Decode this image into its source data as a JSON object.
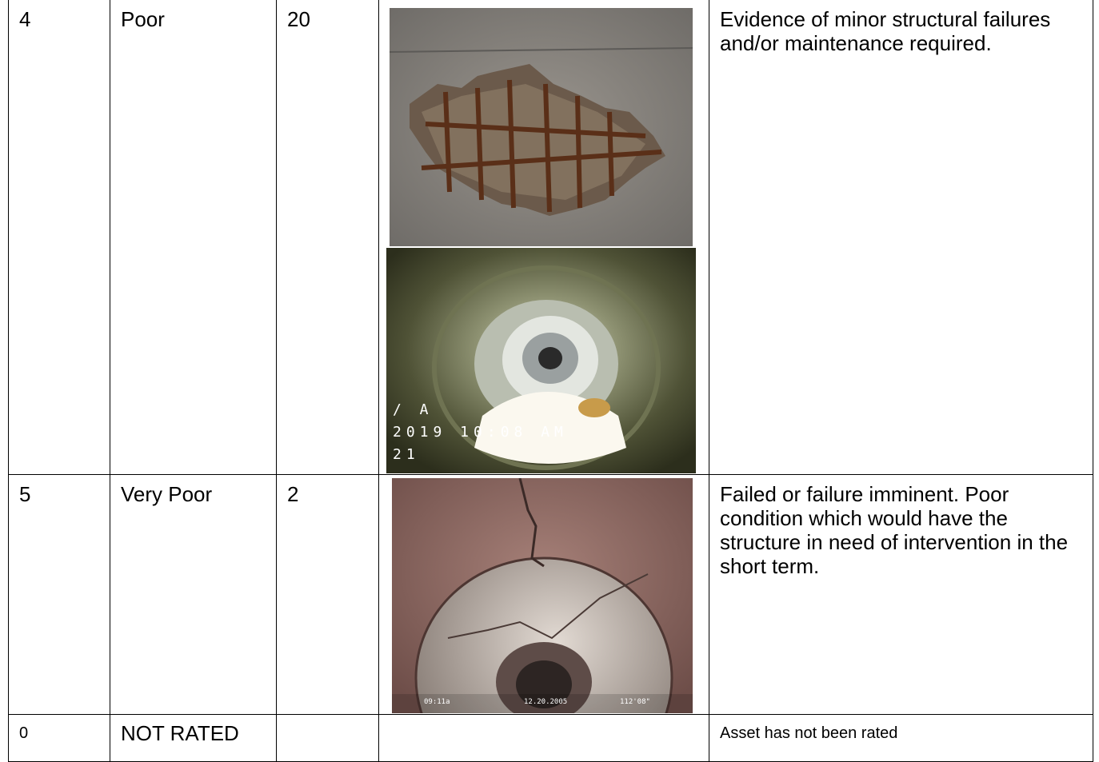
{
  "table": {
    "rows": [
      {
        "rating": "4",
        "condition": "Poor",
        "count": "20",
        "photo_text": [
          "/ A",
          "2019 10:08 AM",
          "21"
        ],
        "description": "Evidence of minor structural failures and/or maintenance required."
      },
      {
        "rating": "5",
        "condition": "Very Poor",
        "count": "2",
        "photo_text": [
          "09:11a",
          "12.20.2005",
          "112'08\""
        ],
        "description": "Failed or failure imminent. Poor condition which would have the structure in need of intervention in the short term."
      },
      {
        "rating": "0",
        "condition": "NOT RATED",
        "description": "Asset has not been rated"
      }
    ]
  }
}
